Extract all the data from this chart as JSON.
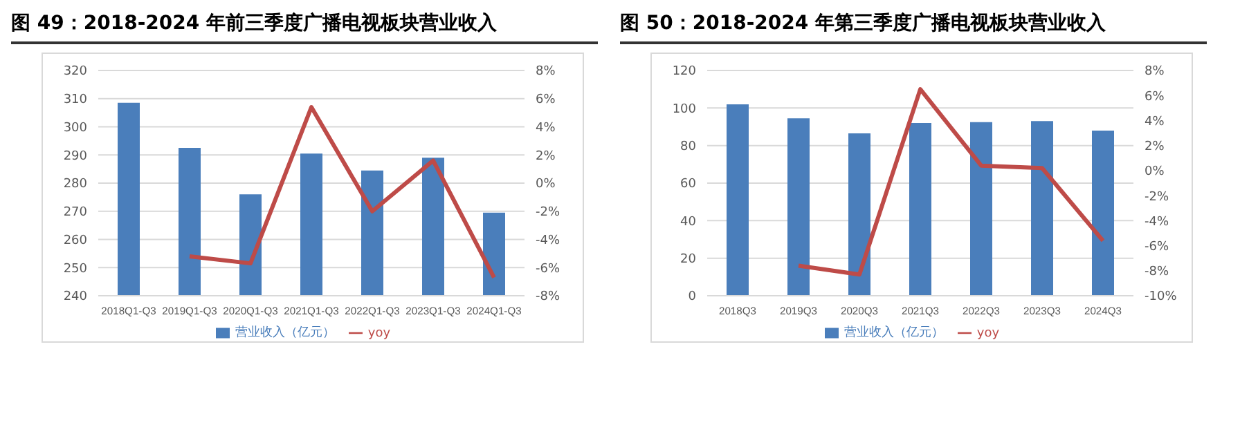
{
  "chart_data": [
    {
      "type": "bar",
      "title": "图 49：2018-2024 年前三季度广播电视板块营业收入",
      "categories": [
        "2018Q1-Q3",
        "2019Q1-Q3",
        "2020Q1-Q3",
        "2021Q1-Q3",
        "2022Q1-Q3",
        "2023Q1-Q3",
        "2024Q1-Q3"
      ],
      "series": [
        {
          "name": "营业收入（亿元）",
          "color": "#4a7ebb",
          "values": [
            308.5,
            292.5,
            276,
            290.5,
            284.5,
            289,
            269.5
          ]
        },
        {
          "name": "yoy",
          "type": "line",
          "axis": "y2",
          "color": "#be4b48",
          "values": [
            null,
            -5.2,
            -5.7,
            5.4,
            -2.0,
            1.6,
            -6.7
          ]
        }
      ],
      "ylim": [
        240,
        320
      ],
      "yticks": [
        240,
        250,
        260,
        270,
        280,
        290,
        300,
        310,
        320
      ],
      "y2lim": [
        -8,
        8
      ],
      "y2ticks": [
        {
          "value": -8,
          "label": "-8%"
        },
        {
          "value": -6,
          "label": "-6%"
        },
        {
          "value": -4,
          "label": "-4%"
        },
        {
          "value": -2,
          "label": "-2%"
        },
        {
          "value": 0,
          "label": "0%"
        },
        {
          "value": 2,
          "label": "2%"
        },
        {
          "value": 4,
          "label": "4%"
        },
        {
          "value": 6,
          "label": "6%"
        },
        {
          "value": 8,
          "label": "8%"
        }
      ],
      "grid": "y",
      "legend": "bottom",
      "marker": "none"
    },
    {
      "type": "bar",
      "title": "图 50：2018-2024 年第三季度广播电视板块营业收入",
      "categories": [
        "2018Q3",
        "2019Q3",
        "2020Q3",
        "2021Q3",
        "2022Q3",
        "2023Q3",
        "2024Q3"
      ],
      "series": [
        {
          "name": "营业收入（亿元）",
          "color": "#4a7ebb",
          "values": [
            102,
            94.5,
            86.5,
            92,
            92.5,
            93,
            88
          ]
        },
        {
          "name": "yoy",
          "type": "line",
          "axis": "y2",
          "color": "#be4b48",
          "values": [
            null,
            -7.6,
            -8.3,
            6.5,
            0.4,
            0.2,
            -5.6
          ]
        }
      ],
      "ylim": [
        0,
        120
      ],
      "yticks": [
        0,
        20,
        40,
        60,
        80,
        100,
        120
      ],
      "y2lim": [
        -10,
        8
      ],
      "y2ticks": [
        {
          "value": -10,
          "label": "-10%"
        },
        {
          "value": -8,
          "label": "-8%"
        },
        {
          "value": -6,
          "label": "-6%"
        },
        {
          "value": -4,
          "label": "-4%"
        },
        {
          "value": -2,
          "label": "-2%"
        },
        {
          "value": 0,
          "label": "0%"
        },
        {
          "value": 2,
          "label": "2%"
        },
        {
          "value": 4,
          "label": "4%"
        },
        {
          "value": 6,
          "label": "6%"
        },
        {
          "value": 8,
          "label": "8%"
        }
      ],
      "grid": "y",
      "legend": "bottom",
      "marker": "none"
    }
  ]
}
